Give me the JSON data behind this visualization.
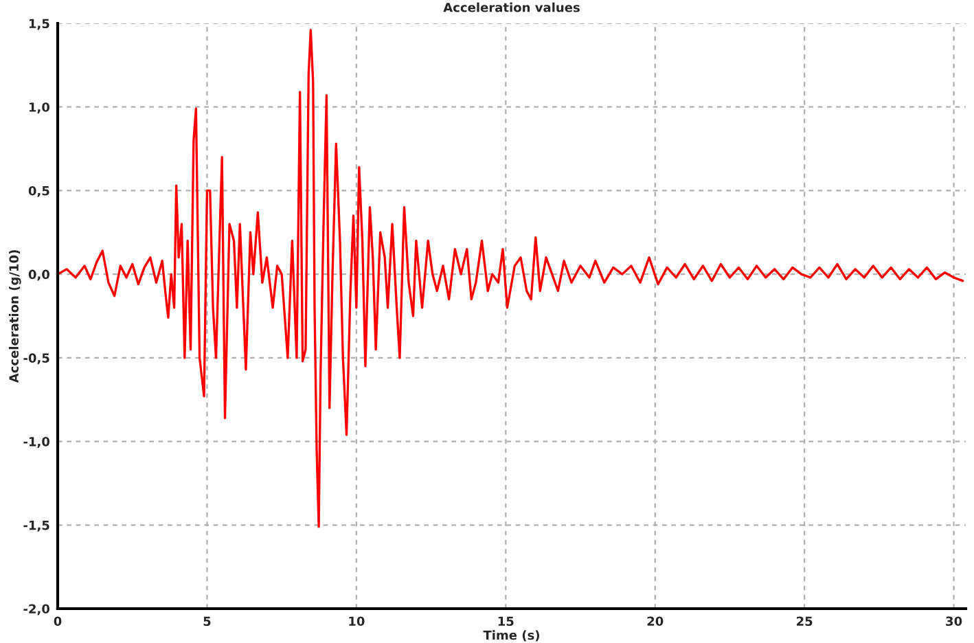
{
  "chart_data": {
    "type": "line",
    "title": "Acceleration values",
    "xlabel": "Time (s)",
    "ylabel": "Acceleration (g/10)",
    "xlim": [
      0,
      30.4
    ],
    "xticks": [
      0,
      5,
      10,
      15,
      20,
      25,
      30
    ],
    "ylim": [
      -2.0,
      1.5
    ],
    "yticks": [
      {
        "value": -2.0,
        "label": "-2,0"
      },
      {
        "value": -1.5,
        "label": "-1,5"
      },
      {
        "value": -1.0,
        "label": "-1,0"
      },
      {
        "value": -0.5,
        "label": "-0,5"
      },
      {
        "value": 0.0,
        "label": "0,0"
      },
      {
        "value": 0.5,
        "label": "0,5"
      },
      {
        "value": 1.0,
        "label": "1,0"
      },
      {
        "value": 1.5,
        "label": "1,5"
      }
    ],
    "grid": true,
    "legend": false,
    "marker": "none",
    "line_style": "solid",
    "series": [
      {
        "color": "#ff0000",
        "x": [
          0,
          0.3,
          0.6,
          0.9,
          1.1,
          1.3,
          1.5,
          1.7,
          1.9,
          2.1,
          2.3,
          2.5,
          2.7,
          2.9,
          3.1,
          3.3,
          3.5,
          3.6,
          3.7,
          3.8,
          3.9,
          3.97,
          4.05,
          4.15,
          4.25,
          4.35,
          4.45,
          4.55,
          4.63,
          4.75,
          4.9,
          5.0,
          5.1,
          5.2,
          5.3,
          5.5,
          5.6,
          5.75,
          5.9,
          6.0,
          6.1,
          6.3,
          6.45,
          6.55,
          6.7,
          6.85,
          7.0,
          7.2,
          7.35,
          7.5,
          7.7,
          7.85,
          8.0,
          8.11,
          8.2,
          8.3,
          8.4,
          8.47,
          8.55,
          8.6,
          8.67,
          8.74,
          8.8,
          8.9,
          9.0,
          9.1,
          9.2,
          9.32,
          9.45,
          9.55,
          9.67,
          9.8,
          9.9,
          10.0,
          10.09,
          10.2,
          10.3,
          10.45,
          10.55,
          10.65,
          10.8,
          10.95,
          11.05,
          11.2,
          11.35,
          11.45,
          11.6,
          11.75,
          11.9,
          12.0,
          12.2,
          12.4,
          12.55,
          12.7,
          12.9,
          13.1,
          13.3,
          13.5,
          13.7,
          13.85,
          14.0,
          14.2,
          14.4,
          14.55,
          14.75,
          14.9,
          15.05,
          15.3,
          15.5,
          15.7,
          15.85,
          16.0,
          16.15,
          16.35,
          16.55,
          16.75,
          16.95,
          17.2,
          17.5,
          17.8,
          18.0,
          18.3,
          18.6,
          18.9,
          19.2,
          19.5,
          19.8,
          20.1,
          20.4,
          20.7,
          21.0,
          21.3,
          21.6,
          21.9,
          22.2,
          22.5,
          22.8,
          23.1,
          23.4,
          23.7,
          24.0,
          24.3,
          24.6,
          24.9,
          25.2,
          25.5,
          25.8,
          26.1,
          26.4,
          26.7,
          27.0,
          27.3,
          27.6,
          27.9,
          28.2,
          28.5,
          28.8,
          29.1,
          29.4,
          29.7,
          30.0,
          30.3
        ],
        "values": [
          0.0,
          0.03,
          -0.02,
          0.05,
          -0.03,
          0.07,
          0.14,
          -0.05,
          -0.13,
          0.05,
          -0.02,
          0.06,
          -0.06,
          0.04,
          0.1,
          -0.05,
          0.08,
          -0.1,
          -0.26,
          0.0,
          -0.2,
          0.53,
          0.1,
          0.3,
          -0.5,
          0.2,
          -0.45,
          0.8,
          0.99,
          -0.5,
          -0.73,
          0.5,
          0.5,
          -0.2,
          -0.5,
          0.7,
          -0.86,
          0.3,
          0.2,
          -0.2,
          0.3,
          -0.57,
          0.25,
          0.0,
          0.37,
          -0.05,
          0.1,
          -0.2,
          0.05,
          0.0,
          -0.5,
          0.2,
          -0.5,
          1.09,
          -0.52,
          -0.45,
          1.2,
          1.46,
          1.15,
          -0.2,
          -1.05,
          -1.51,
          -0.6,
          0.3,
          1.07,
          -0.8,
          0.0,
          0.78,
          0.2,
          -0.5,
          -0.96,
          -0.1,
          0.35,
          -0.2,
          0.64,
          0.2,
          -0.55,
          0.4,
          0.1,
          -0.45,
          0.25,
          0.1,
          -0.2,
          0.3,
          -0.2,
          -0.5,
          0.4,
          -0.05,
          -0.25,
          0.2,
          -0.2,
          0.2,
          0.0,
          -0.1,
          0.05,
          -0.15,
          0.15,
          0.0,
          0.15,
          -0.15,
          -0.05,
          0.2,
          -0.1,
          0.0,
          -0.05,
          0.15,
          -0.2,
          0.05,
          0.1,
          -0.1,
          -0.15,
          0.22,
          -0.1,
          0.1,
          0.0,
          -0.1,
          0.08,
          -0.05,
          0.05,
          -0.02,
          0.08,
          -0.05,
          0.04,
          0.0,
          0.05,
          -0.05,
          0.1,
          -0.06,
          0.04,
          -0.02,
          0.06,
          -0.03,
          0.05,
          -0.04,
          0.06,
          -0.02,
          0.04,
          -0.03,
          0.05,
          -0.02,
          0.03,
          -0.03,
          0.04,
          0.0,
          -0.02,
          0.04,
          -0.02,
          0.06,
          -0.03,
          0.03,
          -0.02,
          0.05,
          -0.02,
          0.04,
          -0.03,
          0.03,
          -0.02,
          0.04,
          -0.03,
          0.01,
          -0.02,
          -0.04
        ]
      }
    ]
  }
}
